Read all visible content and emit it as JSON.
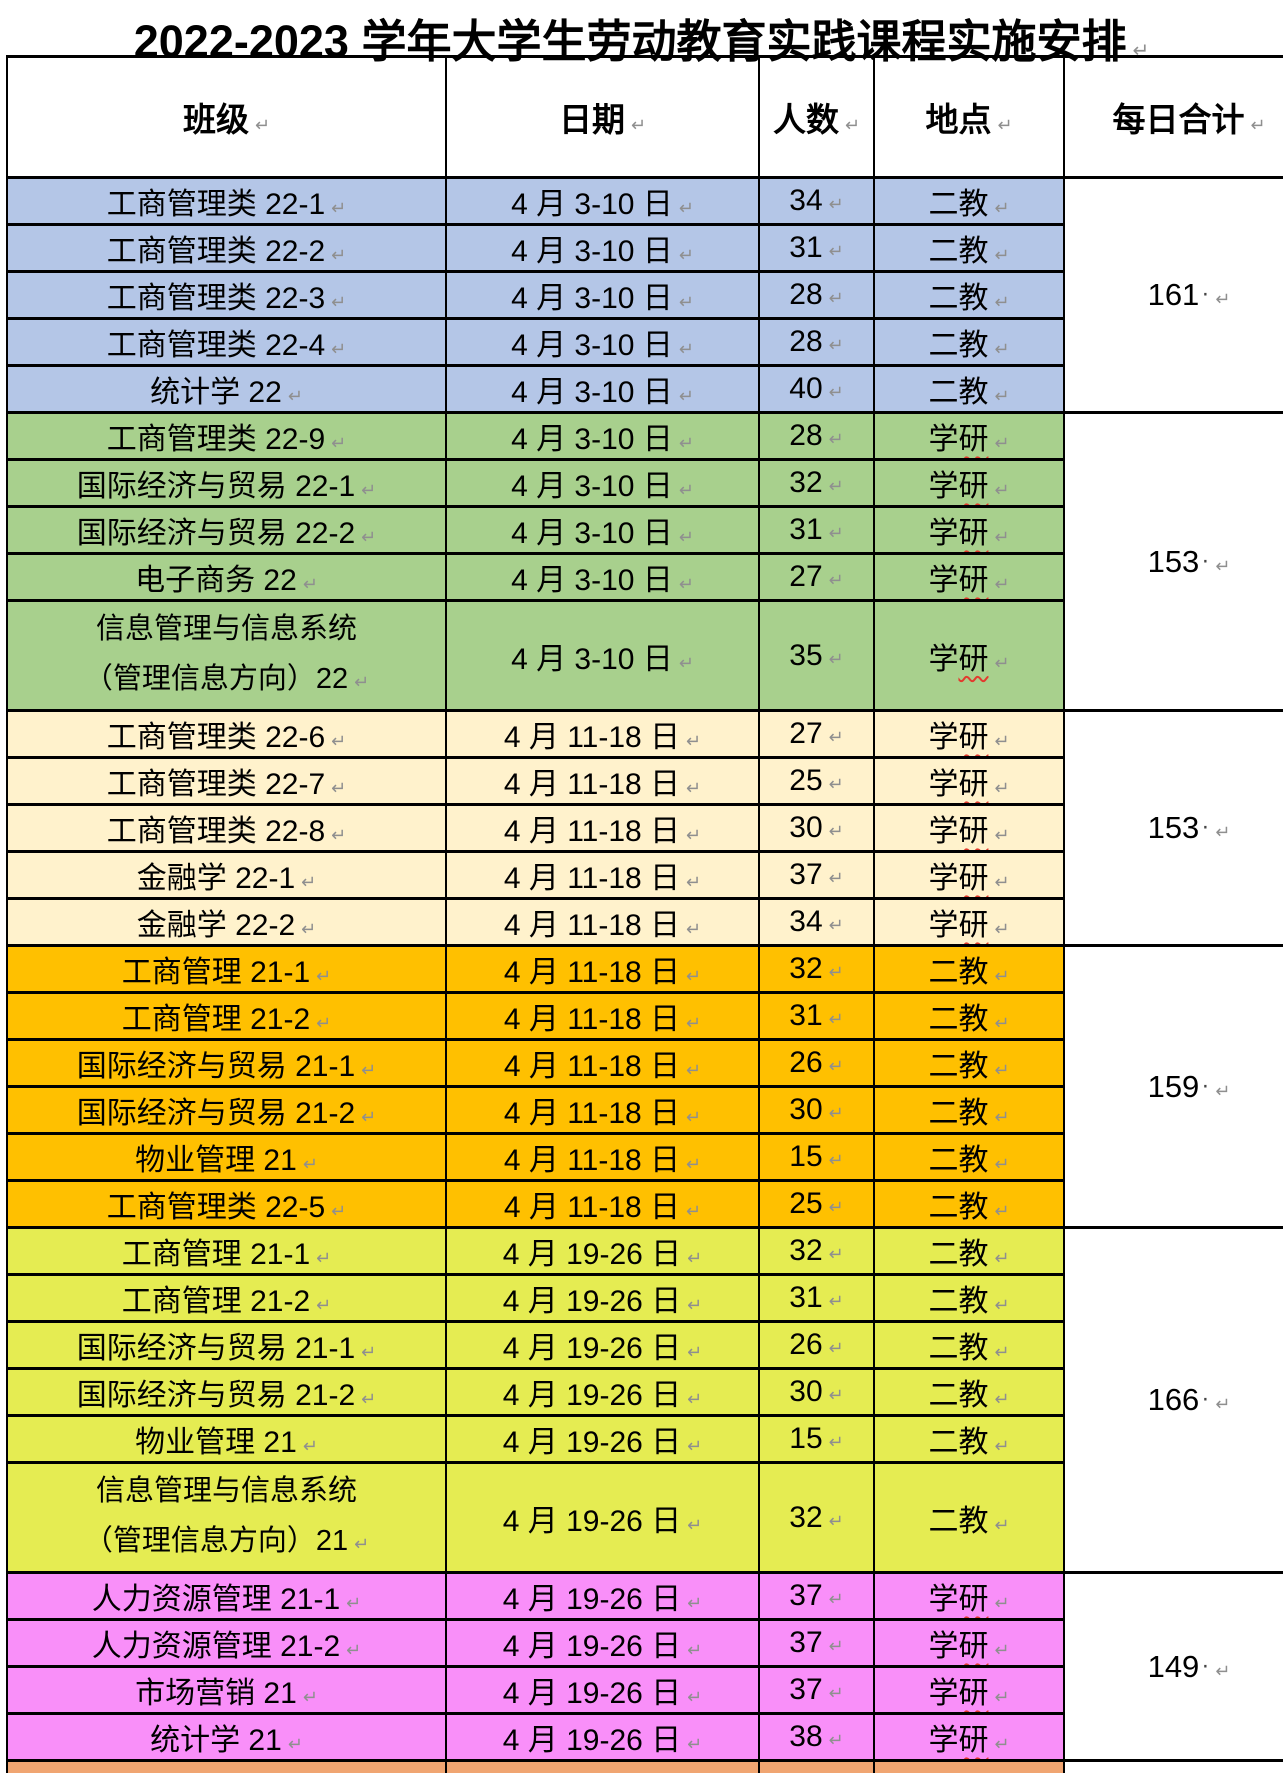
{
  "title": "2022-2023 学年大学生劳动教育实践课程实施安排",
  "marks": {
    "cell_end_mark": "↵",
    "space_dot": "·"
  },
  "columns": [
    "班级",
    "日期",
    "人数",
    "地点",
    "每日合计"
  ],
  "sections": [
    {
      "color": "#B4C6E7",
      "total": "161",
      "rows": [
        {
          "class_name": "工商管理类 22-1",
          "date": "4 月 3-10 日",
          "count": "34",
          "location": "二教",
          "loc_wavy": false
        },
        {
          "class_name": "工商管理类 22-2",
          "date": "4 月 3-10 日",
          "count": "31",
          "location": "二教",
          "loc_wavy": false
        },
        {
          "class_name": "工商管理类 22-3",
          "date": "4 月 3-10 日",
          "count": "28",
          "location": "二教",
          "loc_wavy": false
        },
        {
          "class_name": "工商管理类 22-4",
          "date": "4 月 3-10 日",
          "count": "28",
          "location": "二教",
          "loc_wavy": false
        },
        {
          "class_name": "统计学 22",
          "date": "4 月 3-10 日",
          "count": "40",
          "location": "二教",
          "loc_wavy": false
        }
      ]
    },
    {
      "color": "#A8D08D",
      "total": "153",
      "rows": [
        {
          "class_name": "工商管理类 22-9",
          "date": "4 月 3-10 日",
          "count": "28",
          "location": "学研",
          "loc_wavy": true
        },
        {
          "class_name": "国际经济与贸易 22-1",
          "date": "4 月 3-10 日",
          "count": "32",
          "location": "学研",
          "loc_wavy": true
        },
        {
          "class_name": "国际经济与贸易 22-2",
          "date": "4 月 3-10 日",
          "count": "31",
          "location": "学研",
          "loc_wavy": true
        },
        {
          "class_name": "电子商务 22",
          "date": "4 月 3-10 日",
          "count": "27",
          "location": "学研",
          "loc_wavy": true
        },
        {
          "class_name": "信息管理与信息系统（管理信息方向）22",
          "line1": "信息管理与信息系统",
          "line2": "（管理信息方向）22",
          "two_line": true,
          "date": "4 月 3-10 日",
          "count": "35",
          "location": "学研",
          "loc_wavy": true
        }
      ]
    },
    {
      "color": "#FFF2CC",
      "total": "153",
      "rows": [
        {
          "class_name": "工商管理类 22-6",
          "date": "4 月 11-18 日",
          "count": "27",
          "location": "学研",
          "loc_wavy": true
        },
        {
          "class_name": "工商管理类 22-7",
          "date": "4 月 11-18 日",
          "count": "25",
          "location": "学研",
          "loc_wavy": true
        },
        {
          "class_name": "工商管理类 22-8",
          "date": "4 月 11-18 日",
          "count": "30",
          "location": "学研",
          "loc_wavy": true
        },
        {
          "class_name": "金融学 22-1",
          "date": "4 月 11-18 日",
          "count": "37",
          "location": "学研",
          "loc_wavy": true
        },
        {
          "class_name": "金融学 22-2",
          "date": "4 月 11-18 日",
          "count": "34",
          "location": "学研",
          "loc_wavy": true
        }
      ]
    },
    {
      "color": "#FFC000",
      "total": "159",
      "rows": [
        {
          "class_name": "工商管理 21-1",
          "date": "4 月 11-18 日",
          "count": "32",
          "location": "二教",
          "loc_wavy": false
        },
        {
          "class_name": "工商管理 21-2",
          "date": "4 月 11-18 日",
          "count": "31",
          "location": "二教",
          "loc_wavy": false
        },
        {
          "class_name": "国际经济与贸易 21-1",
          "date": "4 月 11-18 日",
          "count": "26",
          "location": "二教",
          "loc_wavy": false
        },
        {
          "class_name": "国际经济与贸易 21-2",
          "date": "4 月 11-18 日",
          "count": "30",
          "location": "二教",
          "loc_wavy": false
        },
        {
          "class_name": "物业管理 21",
          "date": "4 月 11-18 日",
          "count": "15",
          "location": "二教",
          "loc_wavy": false
        },
        {
          "class_name": "工商管理类 22-5",
          "date": "4 月 11-18 日",
          "count": "25",
          "location": "二教",
          "loc_wavy": false
        }
      ]
    },
    {
      "color": "#E5EC52",
      "total": "166",
      "rows": [
        {
          "class_name": "工商管理 21-1",
          "date": "4 月 19-26 日",
          "count": "32",
          "location": "二教",
          "loc_wavy": false
        },
        {
          "class_name": "工商管理 21-2",
          "date": "4 月 19-26 日",
          "count": "31",
          "location": "二教",
          "loc_wavy": false
        },
        {
          "class_name": "国际经济与贸易 21-1",
          "date": "4 月 19-26 日",
          "count": "26",
          "location": "二教",
          "loc_wavy": false
        },
        {
          "class_name": "国际经济与贸易 21-2",
          "date": "4 月 19-26 日",
          "count": "30",
          "location": "二教",
          "loc_wavy": false
        },
        {
          "class_name": "物业管理 21",
          "date": "4 月 19-26 日",
          "count": "15",
          "location": "二教",
          "loc_wavy": false
        },
        {
          "class_name": "信息管理与信息系统（管理信息方向）21",
          "line1": "信息管理与信息系统",
          "line2": "（管理信息方向）21",
          "two_line": true,
          "date": "4 月 19-26 日",
          "count": "32",
          "location": "二教",
          "loc_wavy": false
        }
      ]
    },
    {
      "color": "#F98FF9",
      "total": "149",
      "rows": [
        {
          "class_name": "人力资源管理 21-1",
          "date": "4 月 19-26 日",
          "count": "37",
          "location": "学研",
          "loc_wavy": true
        },
        {
          "class_name": "人力资源管理 21-2",
          "date": "4 月 19-26 日",
          "count": "37",
          "location": "学研",
          "loc_wavy": true
        },
        {
          "class_name": "市场营销 21",
          "date": "4 月 19-26 日",
          "count": "37",
          "location": "学研",
          "loc_wavy": true
        },
        {
          "class_name": "统计学 21",
          "date": "4 月 19-26 日",
          "count": "38",
          "location": "学研",
          "loc_wavy": true
        }
      ]
    }
  ],
  "partial_bottom_row": {
    "color": "#F0A571"
  }
}
